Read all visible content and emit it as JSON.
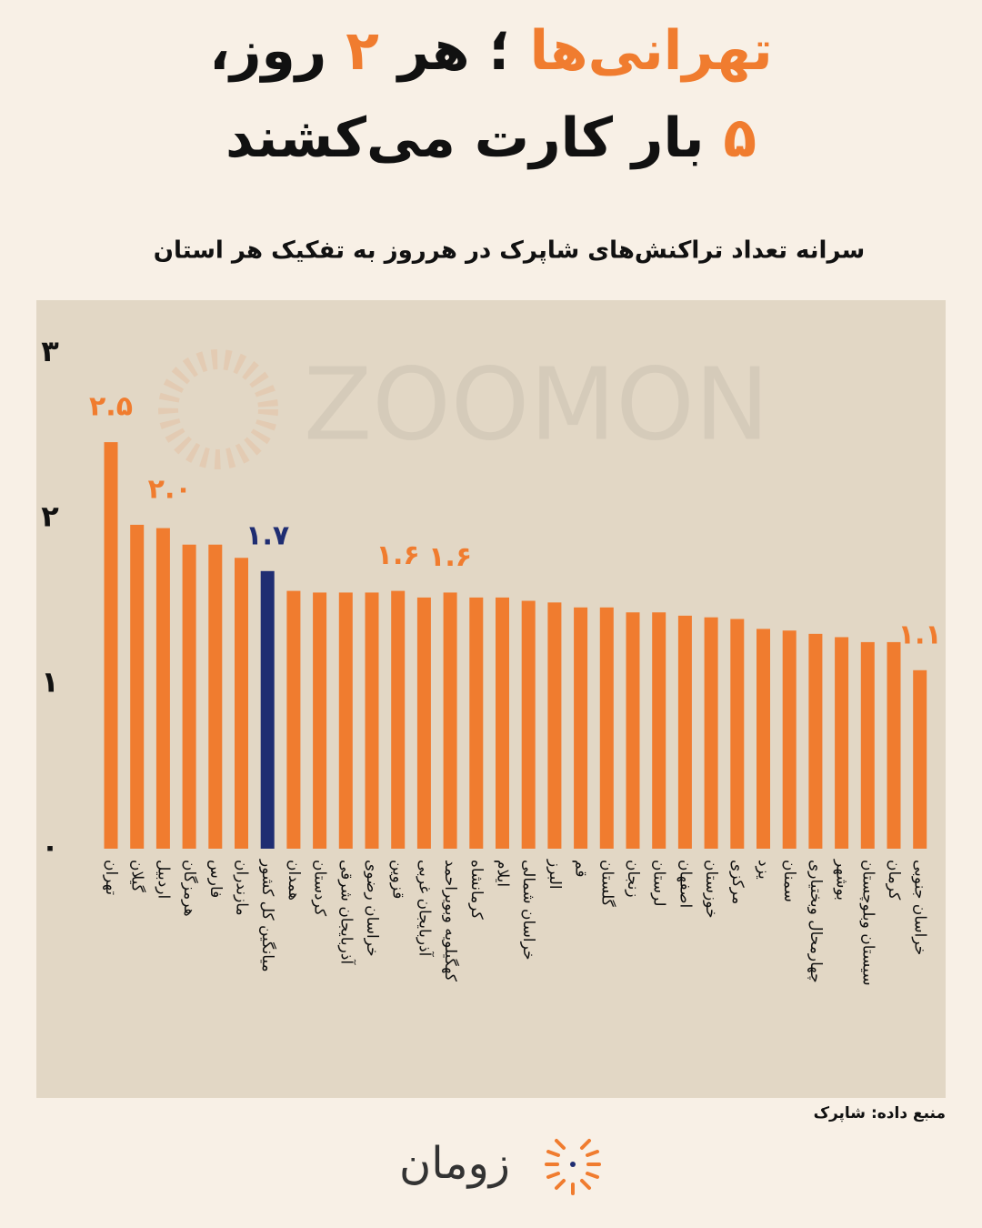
{
  "header": {
    "title_lines": [
      [
        {
          "text": "تهرانی‌ها",
          "color": "#f07c2f"
        },
        {
          "text": " ؛ هر ",
          "color": "#111111"
        },
        {
          "text": "۲",
          "color": "#f07c2f"
        },
        {
          "text": " روز،",
          "color": "#111111"
        }
      ],
      [
        {
          "text": "۵",
          "color": "#f07c2f"
        },
        {
          "text": " بار کارت می‌کشند",
          "color": "#111111"
        }
      ]
    ]
  },
  "chart_data": {
    "type": "bar",
    "subtitle": "سرانه تعداد تراکنش‌های شاپرک در هرروز به تفکیک هر استان",
    "categories": [
      "تهران",
      "گیلان",
      "اردبیل",
      "هرمزگان",
      "فارس",
      "مازندران",
      "میانگین کل کشور",
      "همدان",
      "کردستان",
      "آذربایجان شرقی",
      "خراسان رضوی",
      "قزوین",
      "آذربایجان غربی",
      "کهگیلویه وبویراحمد",
      "کرمانشاه",
      "ایلام",
      "خراسان شمالی",
      "البرز",
      "قم",
      "گلستان",
      "زنجان",
      "لرستان",
      "اصفهان",
      "خوزستان",
      "مرکزی",
      "یزد",
      "سمنان",
      "چهارمحال وبختیاری",
      "بوشهر",
      "سیستان وبلوچستان",
      "کرمان",
      "خراسان جنوبی"
    ],
    "values": [
      2.46,
      1.96,
      1.94,
      1.84,
      1.84,
      1.76,
      1.68,
      1.56,
      1.55,
      1.55,
      1.55,
      1.56,
      1.52,
      1.55,
      1.52,
      1.52,
      1.5,
      1.49,
      1.46,
      1.46,
      1.43,
      1.43,
      1.41,
      1.4,
      1.39,
      1.33,
      1.32,
      1.3,
      1.28,
      1.25,
      1.25,
      1.08
    ],
    "value_labels": [
      "۲.۵",
      "۲.۰",
      null,
      null,
      null,
      null,
      "۱.۷",
      null,
      null,
      null,
      null,
      "۱.۶",
      null,
      "۱.۶",
      null,
      null,
      null,
      null,
      null,
      null,
      null,
      null,
      null,
      null,
      null,
      null,
      null,
      null,
      null,
      null,
      null,
      "۱.۱"
    ],
    "colors": [
      "#f07c2f",
      "#f07c2f",
      "#f07c2f",
      "#f07c2f",
      "#f07c2f",
      "#f07c2f",
      "#1f2d72",
      "#f07c2f",
      "#f07c2f",
      "#f07c2f",
      "#f07c2f",
      "#f07c2f",
      "#f07c2f",
      "#f07c2f",
      "#f07c2f",
      "#f07c2f",
      "#f07c2f",
      "#f07c2f",
      "#f07c2f",
      "#f07c2f",
      "#f07c2f",
      "#f07c2f",
      "#f07c2f",
      "#f07c2f",
      "#f07c2f",
      "#f07c2f",
      "#f07c2f",
      "#f07c2f",
      "#f07c2f",
      "#f07c2f",
      "#f07c2f",
      "#f07c2f"
    ],
    "ylim": [
      0,
      3
    ],
    "yticks": [
      {
        "value": 0,
        "label": "۰"
      },
      {
        "value": 1,
        "label": "۱"
      },
      {
        "value": 2,
        "label": "۲"
      },
      {
        "value": 3,
        "label": "۳"
      }
    ],
    "grid": false
  },
  "watermark": "ZOOMON",
  "source": "منبع داده: شاپرک",
  "logo": "زومان"
}
